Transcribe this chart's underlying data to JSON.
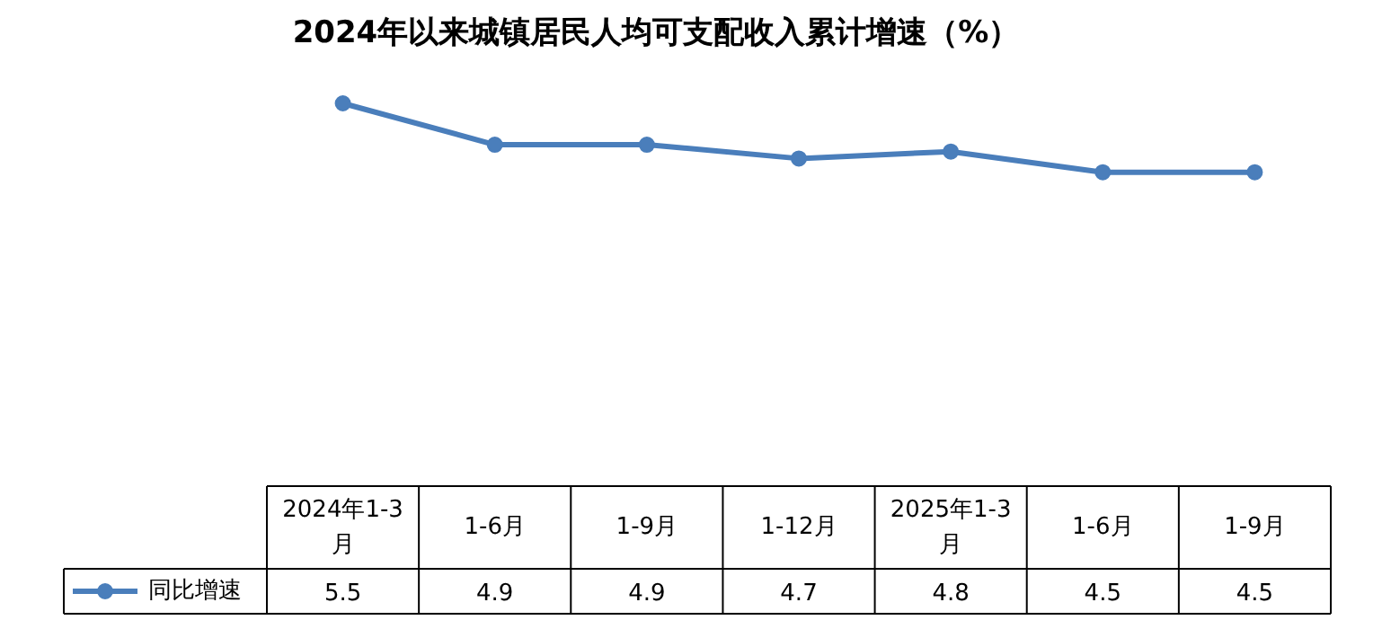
{
  "chart_data": {
    "type": "line",
    "title": "2024年以来城镇居民人均可支配收入累计增速（%）",
    "categories": [
      "2024年1-3月",
      "1-6月",
      "1-9月",
      "1-12月",
      "2025年1-3月",
      "1-6月",
      "1-9月"
    ],
    "series": [
      {
        "name": "同比增速",
        "color": "#4a7ebb",
        "values": [
          5.5,
          4.9,
          4.9,
          4.7,
          4.8,
          4.5,
          4.5
        ]
      }
    ],
    "marker": "circle",
    "line_style": "solid",
    "data_labels": true,
    "legend": "bottom"
  }
}
